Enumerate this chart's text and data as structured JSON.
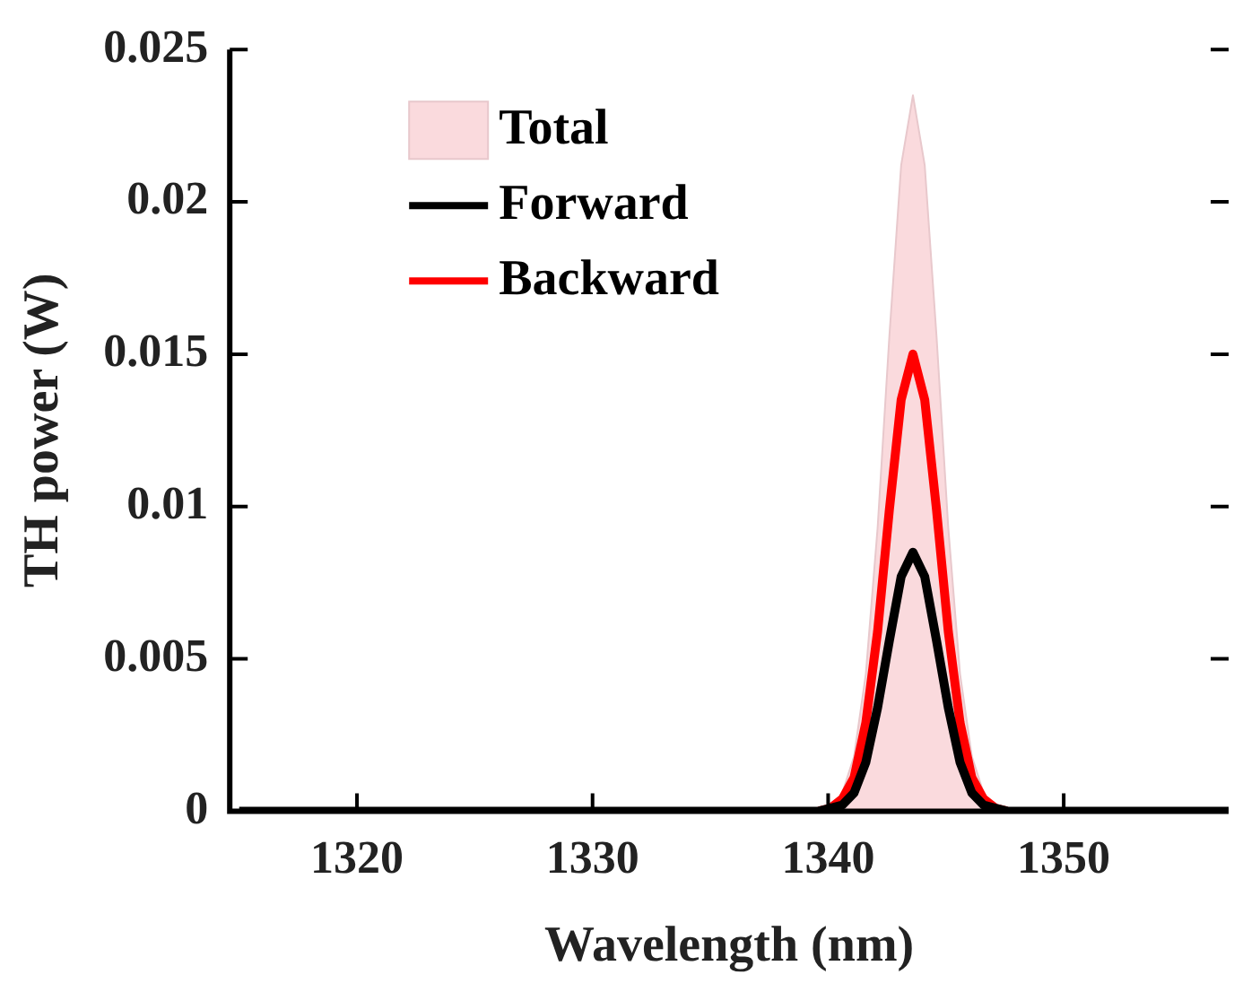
{
  "chart_data": {
    "type": "line",
    "xlabel": "Wavelength (nm)",
    "ylabel": "TH power (W)",
    "x": [
      1315,
      1330,
      1338,
      1339.6,
      1340.1,
      1340.6,
      1341.1,
      1341.6,
      1342.1,
      1342.6,
      1343.1,
      1343.6,
      1344.1,
      1344.6,
      1345.1,
      1345.6,
      1346.1,
      1346.6,
      1347.1,
      1347.6,
      1349,
      1357
    ],
    "series": [
      {
        "name": "Total",
        "type": "area",
        "color": "#fadadd",
        "values": [
          0,
          0,
          0,
          0,
          0.0001,
          0.0006,
          0.0018,
          0.0045,
          0.0093,
          0.0156,
          0.0212,
          0.0235,
          0.0212,
          0.0156,
          0.0093,
          0.0045,
          0.0018,
          0.0006,
          0.0001,
          0,
          0,
          0
        ]
      },
      {
        "name": "Forward",
        "color": "#000000",
        "values": [
          0,
          0,
          0,
          0,
          0.0001,
          0.0002,
          0.0006,
          0.0016,
          0.0034,
          0.0056,
          0.0077,
          0.0085,
          0.0077,
          0.0056,
          0.0034,
          0.0016,
          0.0006,
          0.0002,
          0.0001,
          0,
          0,
          0
        ]
      },
      {
        "name": "Backward",
        "color": "#ff0000",
        "values": [
          null,
          null,
          null,
          0,
          0.0001,
          0.0004,
          0.0011,
          0.0029,
          0.0059,
          0.0099,
          0.0135,
          0.015,
          0.0135,
          0.0099,
          0.0059,
          0.0029,
          0.0011,
          0.0004,
          0.0001,
          0,
          null,
          null
        ]
      }
    ],
    "xlim": [
      1314.6,
      1357
    ],
    "xticks": [
      1320,
      1330,
      1340,
      1350
    ],
    "ylim": [
      0,
      0.025
    ],
    "yticks": [
      0,
      0.005,
      0.01,
      0.015,
      0.02,
      0.025
    ],
    "legend": "top left",
    "marker": "none",
    "line_style": "solid"
  }
}
